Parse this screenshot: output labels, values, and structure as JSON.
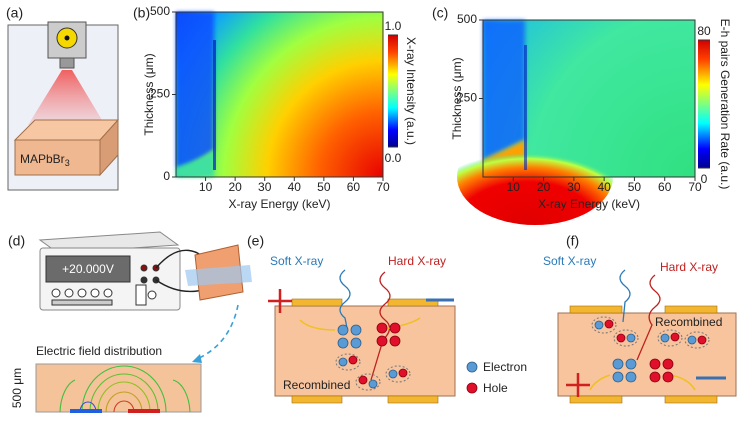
{
  "panel_labels": [
    "(a)",
    "(b)",
    "(c)",
    "(d)",
    "(e)",
    "(f)"
  ],
  "panel_a": {
    "sample": {
      "base": "MAPbBr",
      "subscript": "3"
    }
  },
  "chart_data": [
    {
      "type": "heatmap",
      "xlabel": "X-ray Energy (keV)",
      "ylabel": "Thickness (μm)",
      "xlim": [
        0,
        70
      ],
      "xticks": [
        10,
        20,
        30,
        40,
        50,
        60,
        70
      ],
      "ylim": [
        0,
        500
      ],
      "yticks": [
        0,
        250,
        500
      ],
      "colorbar": {
        "label": "X-ray Intensity (a.u.)",
        "clim": [
          0,
          1
        ],
        "ticks": [
          {
            "value": 0,
            "label": "0.0"
          },
          {
            "value": 1,
            "label": "1.0"
          }
        ]
      }
    },
    {
      "type": "heatmap",
      "xlabel": "X-ray Energy (keV)",
      "ylabel": "Thickness (μm)",
      "xlim": [
        0,
        70
      ],
      "xticks": [
        10,
        20,
        30,
        40,
        50,
        60,
        70
      ],
      "ylim": [
        0,
        500
      ],
      "yticks": [
        250,
        500
      ],
      "colorbar": {
        "label": "E-h pairs Generation Rate (a.u.)",
        "clim": [
          0,
          80
        ],
        "ticks": [
          0,
          80
        ]
      }
    }
  ],
  "panel_d": {
    "display": "+20.000V",
    "field_title": "Electric field distribution",
    "scale_label": "500 μm"
  },
  "panel_e": {
    "soft": "Soft X-ray",
    "hard": "Hard X-ray",
    "recombined": "Recombined",
    "legend": [
      "Electron",
      "Hole"
    ]
  },
  "panel_f": {
    "soft": "Soft X-ray",
    "hard": "Hard X-ray",
    "recombined": "Recombined"
  }
}
